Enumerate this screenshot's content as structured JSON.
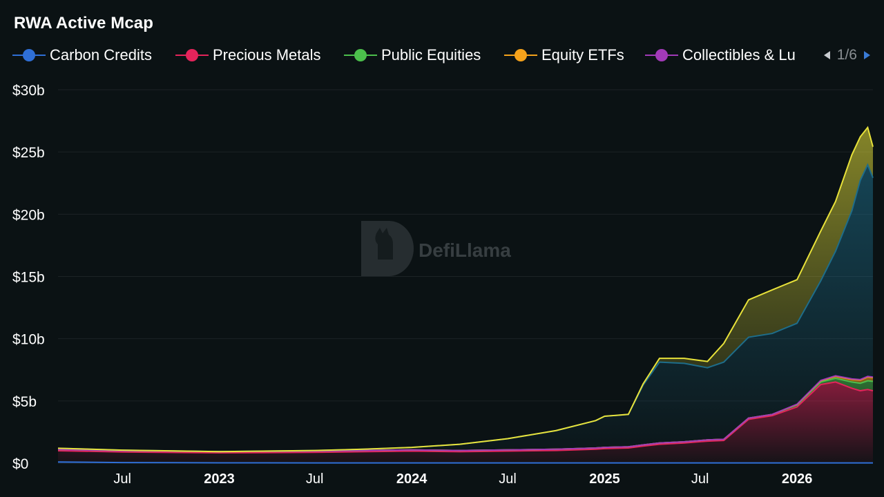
{
  "title": "RWA Active Mcap",
  "legend": {
    "items": [
      {
        "label": "Carbon Credits",
        "color": "#2f6fd6"
      },
      {
        "label": "Precious Metals",
        "color": "#e5245b"
      },
      {
        "label": "Public Equities",
        "color": "#4cbf4c"
      },
      {
        "label": "Equity ETFs",
        "color": "#f5a21b"
      },
      {
        "label": "Collectibles & Lu",
        "color": "#a23ab8"
      }
    ],
    "page": "1/6"
  },
  "watermark": "DefiLlama",
  "chart_data": {
    "type": "area",
    "title": "RWA Active Mcap",
    "stacked": true,
    "xlabel": "",
    "ylabel": "",
    "ylim": [
      0,
      30
    ],
    "y_unit": "$b",
    "y_ticks": [
      "$0",
      "$5b",
      "$10b",
      "$15b",
      "$20b",
      "$25b",
      "$30b"
    ],
    "x_ticks": [
      {
        "label": "Jul",
        "date": "2022-07-01",
        "bold": false
      },
      {
        "label": "2023",
        "date": "2023-01-01",
        "bold": true
      },
      {
        "label": "Jul",
        "date": "2023-07-01",
        "bold": false
      },
      {
        "label": "2024",
        "date": "2024-01-01",
        "bold": true
      },
      {
        "label": "Jul",
        "date": "2024-07-01",
        "bold": false
      },
      {
        "label": "2025",
        "date": "2025-01-01",
        "bold": true
      },
      {
        "label": "Jul",
        "date": "2025-07-01",
        "bold": false
      },
      {
        "label": "2026",
        "date": "2026-01-01",
        "bold": true
      }
    ],
    "xlim": [
      "2022-03-01",
      "2026-05-25"
    ],
    "grid": true,
    "legend_position": "top",
    "x": [
      "2022-03-01",
      "2022-07-01",
      "2023-01-01",
      "2023-07-01",
      "2023-10-01",
      "2024-01-01",
      "2024-04-01",
      "2024-07-01",
      "2024-10-01",
      "2024-12-15",
      "2025-01-01",
      "2025-02-15",
      "2025-03-15",
      "2025-04-15",
      "2025-06-01",
      "2025-07-15",
      "2025-08-15",
      "2025-10-01",
      "2025-11-15",
      "2026-01-01",
      "2026-02-15",
      "2026-03-15",
      "2026-04-15",
      "2026-05-01",
      "2026-05-15",
      "2026-05-25"
    ],
    "series": [
      {
        "name": "Carbon Credits",
        "color": "#2f6fd6",
        "values": [
          0.1,
          0.05,
          0.03,
          0.02,
          0.02,
          0.02,
          0.02,
          0.02,
          0.02,
          0.02,
          0.02,
          0.02,
          0.02,
          0.02,
          0.02,
          0.02,
          0.02,
          0.02,
          0.02,
          0.02,
          0.02,
          0.02,
          0.02,
          0.02,
          0.02,
          0.02
        ]
      },
      {
        "name": "Precious Metals",
        "color": "#e5245b",
        "values": [
          0.9,
          0.85,
          0.8,
          0.85,
          0.9,
          0.95,
          0.9,
          0.95,
          1.0,
          1.1,
          1.15,
          1.2,
          1.35,
          1.5,
          1.6,
          1.75,
          1.8,
          3.5,
          3.8,
          4.5,
          6.3,
          6.5,
          6.0,
          5.8,
          5.9,
          5.8
        ]
      },
      {
        "name": "Public Equities",
        "color": "#4cbf4c",
        "values": [
          0.1,
          0.1,
          0.1,
          0.1,
          0.1,
          0.1,
          0.1,
          0.1,
          0.1,
          0.1,
          0.1,
          0.1,
          0.1,
          0.1,
          0.1,
          0.1,
          0.1,
          0.1,
          0.1,
          0.15,
          0.2,
          0.3,
          0.5,
          0.6,
          0.7,
          0.75
        ]
      },
      {
        "name": "Equity ETFs",
        "color": "#f5a21b",
        "values": [
          0,
          0,
          0,
          0,
          0,
          0,
          0,
          0,
          0,
          0,
          0,
          0,
          0,
          0,
          0,
          0,
          0,
          0,
          0,
          0.05,
          0.1,
          0.15,
          0.2,
          0.25,
          0.3,
          0.3
        ]
      },
      {
        "name": "Collectibles & Lu",
        "color": "#a23ab8",
        "values": [
          0,
          0,
          0,
          0,
          0,
          0,
          0,
          0,
          0,
          0,
          0,
          0,
          0,
          0,
          0,
          0,
          0,
          0,
          0,
          0.02,
          0.03,
          0.05,
          0.05,
          0.05,
          0.05,
          0.05
        ]
      },
      {
        "name": "",
        "color": "#1e6d8a",
        "values": [
          0.1,
          0.05,
          0.0,
          0.05,
          0.1,
          0.2,
          0.5,
          0.9,
          1.5,
          2.2,
          2.5,
          2.6,
          4.8,
          6.5,
          6.3,
          5.8,
          6.2,
          6.5,
          6.5,
          6.5,
          8.0,
          10.0,
          13.5,
          16.0,
          17.0,
          16.0
        ]
      },
      {
        "name": "",
        "color": "#e8e23a",
        "values": [
          0,
          0,
          0,
          0,
          0,
          0,
          0,
          0,
          0,
          0,
          0,
          0,
          0.1,
          0.3,
          0.4,
          0.5,
          1.5,
          3.0,
          3.5,
          3.5,
          4.0,
          4.0,
          4.5,
          3.5,
          3.0,
          2.5
        ]
      }
    ]
  },
  "tick_labels": {
    "y": [
      "$0",
      "$5b",
      "$10b",
      "$15b",
      "$20b",
      "$25b",
      "$30b"
    ],
    "x": [
      "Jul",
      "2023",
      "Jul",
      "2024",
      "Jul",
      "2025",
      "Jul",
      "2026"
    ]
  }
}
